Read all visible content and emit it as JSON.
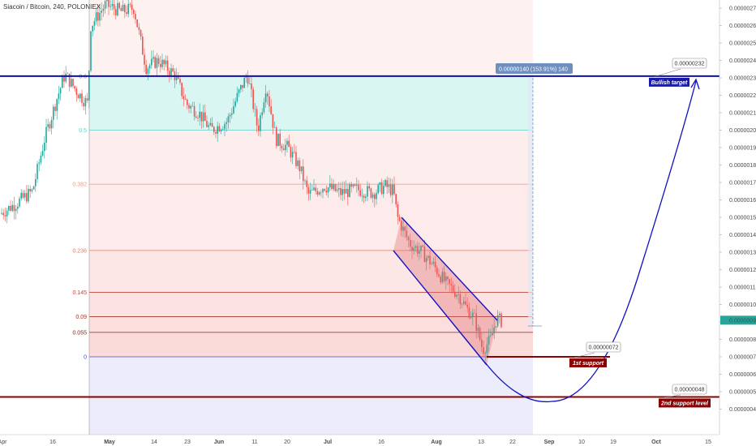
{
  "header": {
    "title": "Siacoin / Bitcoin, 240, POLONIEX"
  },
  "chart_data": {
    "type": "candlestick",
    "y_ticks": [
      "0.00000270",
      "0.00000260",
      "0.00000250",
      "0.00000240",
      "0.00000230",
      "0.00000220",
      "0.00000210",
      "0.00000200",
      "0.00000190",
      "0.00000180",
      "0.00000170",
      "0.00000160",
      "0.00000150",
      "0.00000140",
      "0.00000130",
      "0.00000120",
      "0.00000110",
      "0.00000100",
      "0.00000090",
      "0.00000080",
      "0.00000070",
      "0.00000060",
      "0.00000050",
      "0.00000040"
    ],
    "x_ticks": [
      "Apr",
      "16",
      "May",
      "14",
      "23",
      "Jun",
      "11",
      "20",
      "Jul",
      "16",
      "Aug",
      "13",
      "22",
      "Sep",
      "10",
      "19",
      "Oct",
      "15"
    ],
    "ylim": [
      3.5e-07,
      2.75e-06
    ],
    "fib_levels": [
      {
        "label": "0.5",
        "value": 2e-06
      },
      {
        "label": "0.382",
        "value": 1.69e-06
      },
      {
        "label": "0.236",
        "value": 1.31e-06
      },
      {
        "label": "0.145",
        "value": 1.07e-06
      },
      {
        "label": "0.09",
        "value": 9.3e-07
      },
      {
        "label": "0.055",
        "value": 8.4e-07
      },
      {
        "label": "0",
        "value": 7e-07
      }
    ],
    "fib_top_label": "0.6",
    "current_price": "0.00000091",
    "measure_label": "0.00000140 (153.91%) 140",
    "annotations": [
      {
        "value_label": "0.00000232",
        "level": 2.31e-06,
        "label": "Bullish target",
        "color": "#1a1aa8"
      },
      {
        "value_label": "0.00000072",
        "level": 7e-07,
        "label": "1st support",
        "color": "#8b0000"
      },
      {
        "value_label": "0.00000048",
        "level": 4.7e-07,
        "label": "2nd support level",
        "color": "#8b0000"
      }
    ],
    "colors": {
      "up": "#26a69a",
      "down": "#ef5350",
      "channel": "#1010c8",
      "support": "#8b0000",
      "projection": "#1010c8"
    }
  }
}
